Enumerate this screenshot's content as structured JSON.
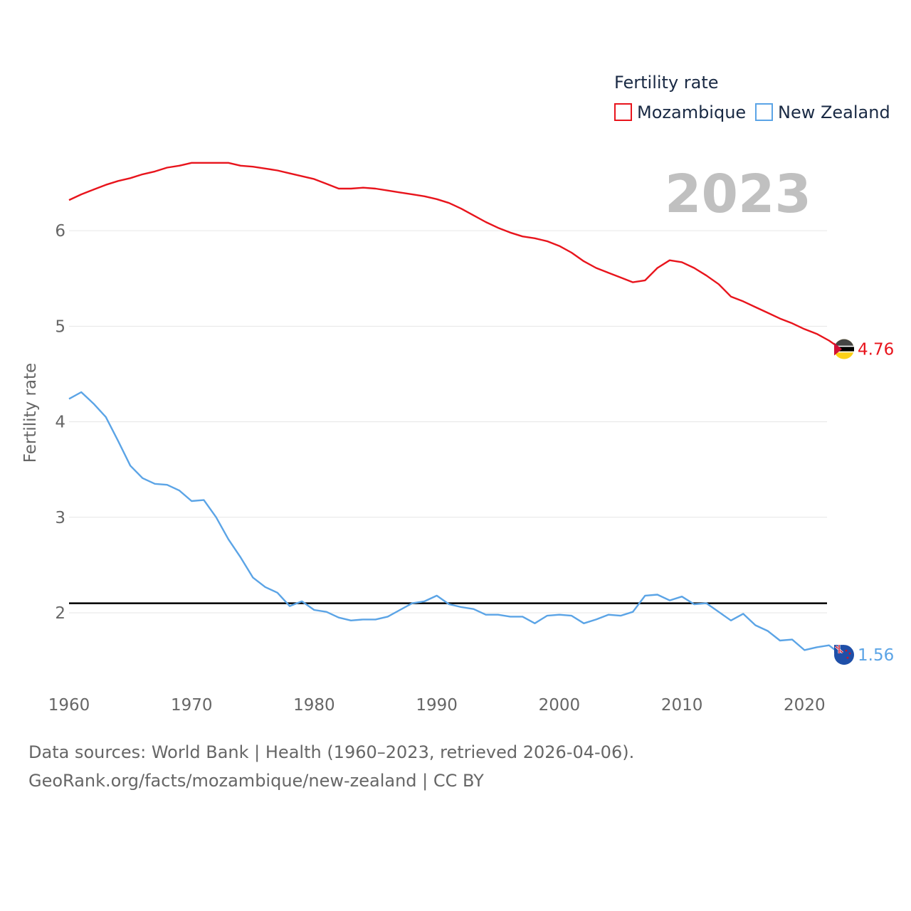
{
  "chart_data": {
    "type": "line",
    "title": "Fertility rate",
    "ylabel": "Fertility rate",
    "xlabel": "",
    "xlim": [
      1960,
      2023
    ],
    "ylim": [
      1.3,
      6.85
    ],
    "x_ticks": [
      1960,
      1970,
      1980,
      1990,
      2000,
      2010,
      2020
    ],
    "y_ticks": [
      2,
      3,
      4,
      5,
      6
    ],
    "reference_line": 2.1,
    "year_label": "2023",
    "x": [
      1960,
      1961,
      1962,
      1963,
      1964,
      1965,
      1966,
      1967,
      1968,
      1969,
      1970,
      1971,
      1972,
      1973,
      1974,
      1975,
      1976,
      1977,
      1978,
      1979,
      1980,
      1981,
      1982,
      1983,
      1984,
      1985,
      1986,
      1987,
      1988,
      1989,
      1990,
      1991,
      1992,
      1993,
      1994,
      1995,
      1996,
      1997,
      1998,
      1999,
      2000,
      2001,
      2002,
      2003,
      2004,
      2005,
      2006,
      2007,
      2008,
      2009,
      2010,
      2011,
      2012,
      2013,
      2014,
      2015,
      2016,
      2017,
      2018,
      2019,
      2020,
      2021,
      2022,
      2023
    ],
    "series": [
      {
        "name": "Mozambique",
        "color": "#e8141c",
        "end_label": "4.76",
        "values": [
          6.32,
          6.38,
          6.43,
          6.48,
          6.52,
          6.55,
          6.59,
          6.62,
          6.66,
          6.68,
          6.71,
          6.71,
          6.71,
          6.71,
          6.68,
          6.67,
          6.65,
          6.63,
          6.6,
          6.57,
          6.54,
          6.49,
          6.44,
          6.44,
          6.45,
          6.44,
          6.42,
          6.4,
          6.38,
          6.36,
          6.33,
          6.29,
          6.23,
          6.16,
          6.09,
          6.03,
          5.98,
          5.94,
          5.92,
          5.89,
          5.84,
          5.77,
          5.68,
          5.61,
          5.56,
          5.51,
          5.46,
          5.48,
          5.61,
          5.69,
          5.67,
          5.61,
          5.53,
          5.44,
          5.31,
          5.26,
          5.2,
          5.14,
          5.08,
          5.03,
          4.97,
          4.92,
          4.85,
          4.76
        ]
      },
      {
        "name": "New Zealand",
        "color": "#5ba4e6",
        "end_label": "1.56",
        "values": [
          4.24,
          4.31,
          4.19,
          4.05,
          3.8,
          3.54,
          3.41,
          3.35,
          3.34,
          3.28,
          3.17,
          3.18,
          3.0,
          2.77,
          2.58,
          2.37,
          2.27,
          2.21,
          2.07,
          2.12,
          2.03,
          2.01,
          1.95,
          1.92,
          1.93,
          1.93,
          1.96,
          2.03,
          2.1,
          2.12,
          2.18,
          2.09,
          2.06,
          2.04,
          1.98,
          1.98,
          1.96,
          1.96,
          1.89,
          1.97,
          1.98,
          1.97,
          1.89,
          1.93,
          1.98,
          1.97,
          2.01,
          2.18,
          2.19,
          2.13,
          2.17,
          2.09,
          2.1,
          2.01,
          1.92,
          1.99,
          1.87,
          1.81,
          1.71,
          1.72,
          1.61,
          1.64,
          1.66,
          1.56
        ]
      }
    ]
  },
  "legend": {
    "title": "Fertility rate",
    "items": [
      "Mozambique",
      "New Zealand"
    ]
  },
  "source": {
    "line1": "Data sources: World Bank | Health (1960–2023, retrieved 2026-04-06).",
    "line2": "GeoRank.org/facts/mozambique/new-zealand | CC BY"
  },
  "colors": {
    "grid": "#e6e6e6",
    "reference": "#000000",
    "year": "#c0c0c0"
  }
}
